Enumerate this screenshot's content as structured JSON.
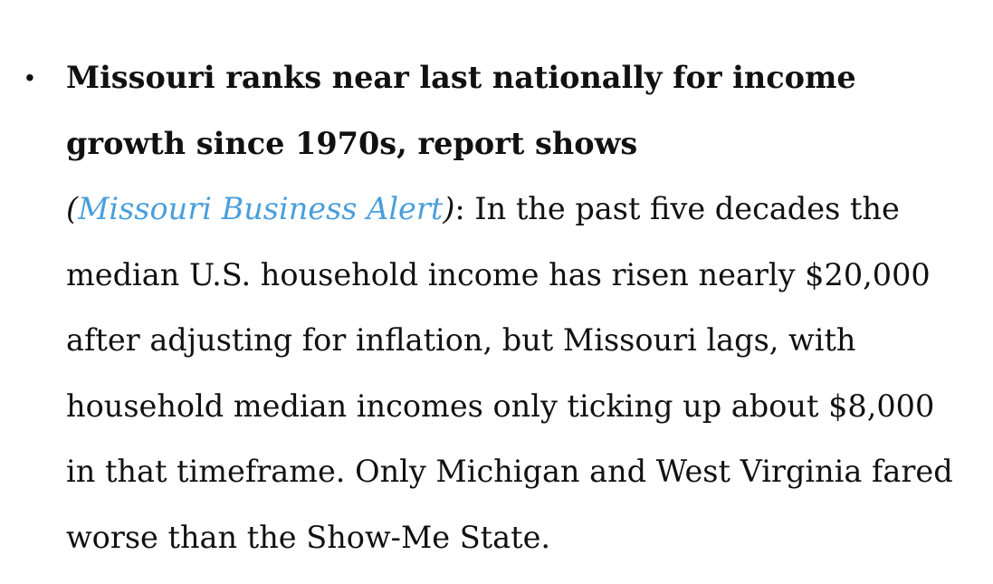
{
  "article": {
    "bullet": "•",
    "headline": "Missouri ranks near last nationally for income growth since 1970s, report shows",
    "source_open": "(",
    "source": "Missouri Business Alert",
    "source_close": ")",
    "separator": ":",
    "body": " In the past five decades the median U.S. household income has risen nearly $20,000 after adjusting for inflation, but Missouri lags, with household median incomes only ticking up about $8,000 in that timeframe. Only Michigan and West Virginia fared worse than the Show-Me State."
  },
  "colors": {
    "link": "#4a9fdc",
    "text": "#111111",
    "background": "#ffffff"
  }
}
